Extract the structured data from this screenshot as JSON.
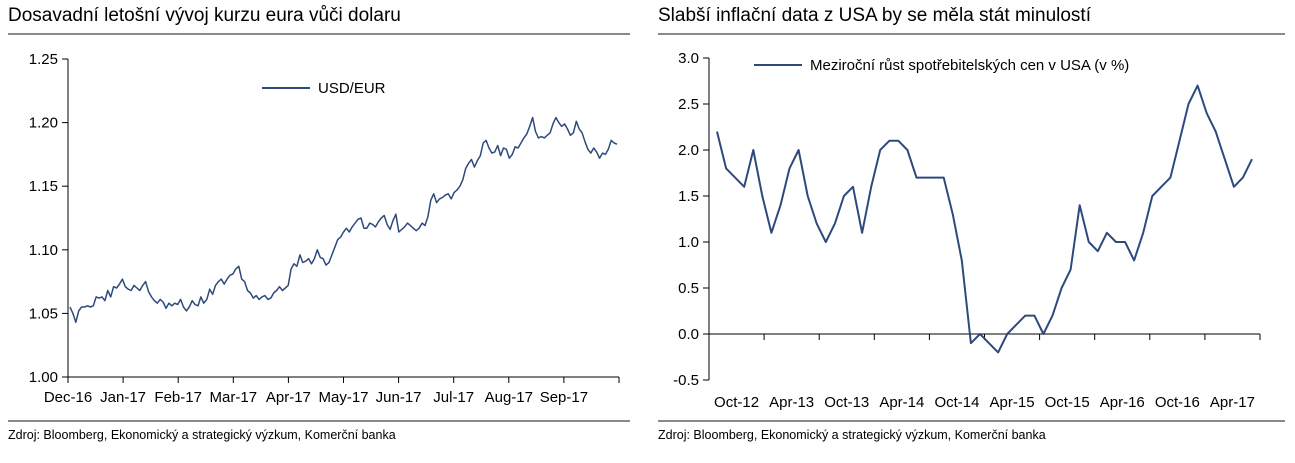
{
  "colors": {
    "series": "#2e4a7d",
    "rule": "#8a8a8a",
    "axis": "#000000"
  },
  "left": {
    "title": "Dosavadní letošní vývoj kurzu eura vůči dolaru",
    "source": "Zdroj: Bloomberg, Ekonomický a strategický výzkum, Komerční banka"
  },
  "right": {
    "title": "Slabší inflační data z USA by se měla stát minulostí",
    "source": "Zdroj: Bloomberg, Ekonomický a strategický výzkum, Komerční banka"
  },
  "chart_data": [
    {
      "type": "line",
      "title": "Dosavadní letošní vývoj kurzu eura vůči dolaru",
      "legend_position": "top-center",
      "grid": false,
      "ylim": [
        1.0,
        1.25
      ],
      "yticks": [
        "1.25",
        "1.20",
        "1.15",
        "1.10",
        "1.05",
        "1.00"
      ],
      "ytick_values": [
        1.25,
        1.2,
        1.15,
        1.1,
        1.05,
        1.0
      ],
      "xticks": [
        "Dec-16",
        "Jan-17",
        "Feb-17",
        "Mar-17",
        "Apr-17",
        "May-17",
        "Jun-17",
        "Jul-17",
        "Aug-17",
        "Sep-17"
      ],
      "series": [
        {
          "name": "USD/EUR",
          "values": [
            1.055,
            1.05,
            1.043,
            1.052,
            1.055,
            1.055,
            1.056,
            1.055,
            1.056,
            1.063,
            1.062,
            1.063,
            1.06,
            1.068,
            1.063,
            1.071,
            1.07,
            1.073,
            1.077,
            1.071,
            1.069,
            1.068,
            1.072,
            1.07,
            1.068,
            1.072,
            1.075,
            1.067,
            1.063,
            1.06,
            1.058,
            1.061,
            1.059,
            1.054,
            1.058,
            1.056,
            1.058,
            1.057,
            1.061,
            1.055,
            1.052,
            1.055,
            1.06,
            1.057,
            1.056,
            1.063,
            1.058,
            1.061,
            1.069,
            1.065,
            1.072,
            1.075,
            1.077,
            1.073,
            1.077,
            1.08,
            1.081,
            1.085,
            1.087,
            1.077,
            1.075,
            1.068,
            1.066,
            1.062,
            1.064,
            1.061,
            1.063,
            1.064,
            1.061,
            1.062,
            1.066,
            1.068,
            1.071,
            1.068,
            1.07,
            1.072,
            1.085,
            1.089,
            1.087,
            1.096,
            1.09,
            1.091,
            1.093,
            1.089,
            1.093,
            1.1,
            1.094,
            1.093,
            1.088,
            1.09,
            1.096,
            1.102,
            1.108,
            1.11,
            1.114,
            1.117,
            1.114,
            1.118,
            1.121,
            1.124,
            1.125,
            1.117,
            1.117,
            1.121,
            1.12,
            1.118,
            1.122,
            1.125,
            1.127,
            1.12,
            1.116,
            1.123,
            1.128,
            1.114,
            1.116,
            1.118,
            1.121,
            1.119,
            1.117,
            1.115,
            1.117,
            1.121,
            1.119,
            1.126,
            1.139,
            1.144,
            1.137,
            1.14,
            1.141,
            1.143,
            1.144,
            1.14,
            1.145,
            1.147,
            1.15,
            1.155,
            1.164,
            1.168,
            1.171,
            1.165,
            1.17,
            1.174,
            1.184,
            1.186,
            1.18,
            1.176,
            1.177,
            1.182,
            1.174,
            1.18,
            1.179,
            1.172,
            1.175,
            1.181,
            1.18,
            1.184,
            1.188,
            1.191,
            1.197,
            1.204,
            1.193,
            1.188,
            1.189,
            1.188,
            1.19,
            1.192,
            1.199,
            1.204,
            1.2,
            1.197,
            1.199,
            1.195,
            1.19,
            1.192,
            1.201,
            1.195,
            1.192,
            1.185,
            1.179,
            1.176,
            1.18,
            1.177,
            1.172,
            1.176,
            1.175,
            1.179,
            1.186,
            1.184,
            1.183
          ]
        }
      ]
    },
    {
      "type": "line",
      "title": "Slabší inflační data z USA by se měla stát minulostí",
      "legend_position": "top-center",
      "grid": false,
      "ylim": [
        -0.5,
        3.0
      ],
      "yticks": [
        "3.0",
        "2.5",
        "2.0",
        "1.5",
        "1.0",
        "0.5",
        "0.0",
        "-0.5"
      ],
      "ytick_values": [
        3.0,
        2.5,
        2.0,
        1.5,
        1.0,
        0.5,
        0.0,
        -0.5
      ],
      "xticks": [
        "Oct-12",
        "Apr-13",
        "Oct-13",
        "Apr-14",
        "Oct-14",
        "Apr-15",
        "Oct-15",
        "Apr-16",
        "Oct-16",
        "Apr-17"
      ],
      "series": [
        {
          "name": "Meziroční růst spotřebitelských cen v USA (v %)",
          "values": [
            2.2,
            1.8,
            1.7,
            1.6,
            2.0,
            1.5,
            1.1,
            1.4,
            1.8,
            2.0,
            1.5,
            1.2,
            1.0,
            1.2,
            1.5,
            1.6,
            1.1,
            1.6,
            2.0,
            2.1,
            2.1,
            2.0,
            1.7,
            1.7,
            1.7,
            1.7,
            1.3,
            0.8,
            -0.1,
            0.0,
            -0.1,
            -0.2,
            0.0,
            0.1,
            0.2,
            0.2,
            0.0,
            0.2,
            0.5,
            0.7,
            1.4,
            1.0,
            0.9,
            1.1,
            1.0,
            1.0,
            0.8,
            1.1,
            1.5,
            1.6,
            1.7,
            2.1,
            2.5,
            2.7,
            2.4,
            2.2,
            1.9,
            1.6,
            1.7,
            1.9
          ]
        }
      ]
    }
  ]
}
